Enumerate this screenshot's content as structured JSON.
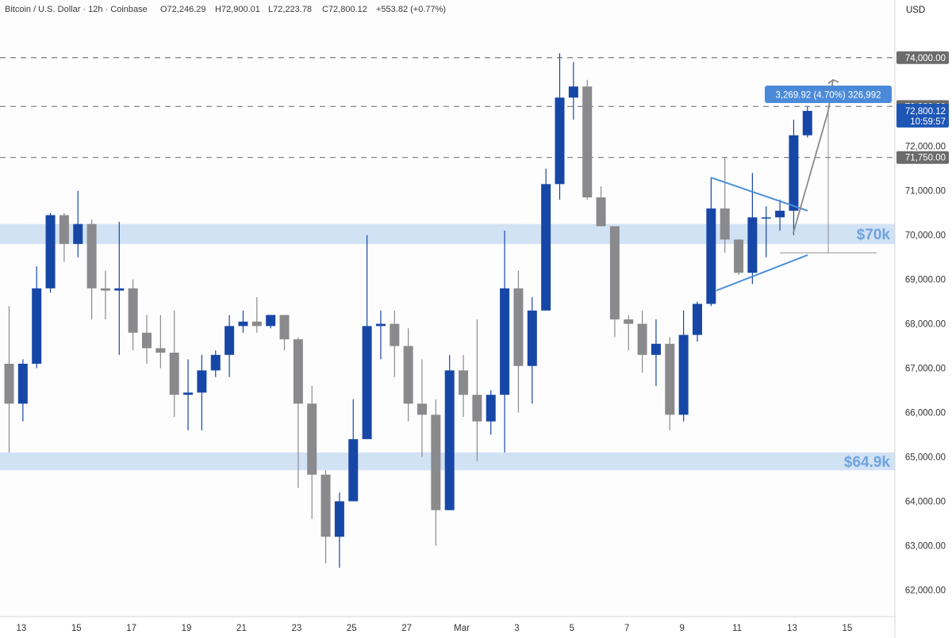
{
  "header": {
    "symbol": "Bitcoin / U.S. Dollar · 12h · Coinbase",
    "open": "O72,246.29",
    "high": "H72,900.01",
    "low": "L72,223.78",
    "close": "C72,800.12",
    "change": "+553.82 (+0.77%)"
  },
  "currency": "USD",
  "colors": {
    "up": "#1747a6",
    "down": "#8a8a8d",
    "zone": "#c9ddf3",
    "zone_label": "#6fa3dc",
    "pattern": "#4a90d9",
    "measure_tag": "#4a8ad8",
    "price_tag": "#1d56b5",
    "level_tag": "#6b6b6b"
  },
  "chart_data": {
    "type": "candlestick",
    "ylim": [
      61400,
      75300
    ],
    "x_ticks": [
      "13",
      "15",
      "17",
      "19",
      "21",
      "23",
      "25",
      "27",
      "Mar",
      "3",
      "5",
      "7",
      "9",
      "11",
      "13",
      "15"
    ],
    "y_ticks": [
      "62,000.00",
      "63,000.00",
      "64,000.00",
      "65,000.00",
      "66,000.00",
      "67,000.00",
      "68,000.00",
      "69,000.00",
      "70,000.00",
      "71,000.00",
      "72,000.00"
    ],
    "candles": [
      {
        "o": 67100,
        "h": 68400,
        "l": 65100,
        "c": 66200
      },
      {
        "o": 66200,
        "h": 67200,
        "l": 65800,
        "c": 67100
      },
      {
        "o": 67100,
        "h": 69300,
        "l": 67000,
        "c": 68800
      },
      {
        "o": 68800,
        "h": 70500,
        "l": 68700,
        "c": 70450
      },
      {
        "o": 70450,
        "h": 70500,
        "l": 69400,
        "c": 69800
      },
      {
        "o": 69800,
        "h": 71000,
        "l": 69500,
        "c": 70250
      },
      {
        "o": 70250,
        "h": 70350,
        "l": 68100,
        "c": 68800
      },
      {
        "o": 68800,
        "h": 69200,
        "l": 68100,
        "c": 68750
      },
      {
        "o": 68750,
        "h": 70300,
        "l": 67300,
        "c": 68800
      },
      {
        "o": 68800,
        "h": 69000,
        "l": 67400,
        "c": 67800
      },
      {
        "o": 67800,
        "h": 68200,
        "l": 67100,
        "c": 67450
      },
      {
        "o": 67450,
        "h": 68200,
        "l": 67000,
        "c": 67350
      },
      {
        "o": 67350,
        "h": 68300,
        "l": 65900,
        "c": 66400
      },
      {
        "o": 66400,
        "h": 67200,
        "l": 65600,
        "c": 66450
      },
      {
        "o": 66450,
        "h": 67300,
        "l": 65600,
        "c": 66950
      },
      {
        "o": 66950,
        "h": 67400,
        "l": 66800,
        "c": 67300
      },
      {
        "o": 67300,
        "h": 68200,
        "l": 66800,
        "c": 67950
      },
      {
        "o": 67950,
        "h": 68300,
        "l": 67800,
        "c": 68050
      },
      {
        "o": 68050,
        "h": 68600,
        "l": 67800,
        "c": 67950
      },
      {
        "o": 67950,
        "h": 68200,
        "l": 67900,
        "c": 68200
      },
      {
        "o": 68200,
        "h": 68200,
        "l": 67400,
        "c": 67650
      },
      {
        "o": 67650,
        "h": 67700,
        "l": 64300,
        "c": 66200
      },
      {
        "o": 66200,
        "h": 66600,
        "l": 63600,
        "c": 64600
      },
      {
        "o": 64600,
        "h": 64700,
        "l": 62600,
        "c": 63200
      },
      {
        "o": 63200,
        "h": 64200,
        "l": 62500,
        "c": 64000
      },
      {
        "o": 64000,
        "h": 66300,
        "l": 64000,
        "c": 65400
      },
      {
        "o": 65400,
        "h": 70000,
        "l": 65400,
        "c": 67950
      },
      {
        "o": 67950,
        "h": 68300,
        "l": 67200,
        "c": 68000
      },
      {
        "o": 68000,
        "h": 68300,
        "l": 66800,
        "c": 67500
      },
      {
        "o": 67500,
        "h": 67900,
        "l": 65800,
        "c": 66200
      },
      {
        "o": 66200,
        "h": 67200,
        "l": 65000,
        "c": 65950
      },
      {
        "o": 65950,
        "h": 66300,
        "l": 63000,
        "c": 63800
      },
      {
        "o": 63800,
        "h": 67300,
        "l": 63800,
        "c": 66950
      },
      {
        "o": 66950,
        "h": 67300,
        "l": 65900,
        "c": 66400
      },
      {
        "o": 66400,
        "h": 68100,
        "l": 64900,
        "c": 65800
      },
      {
        "o": 65800,
        "h": 66500,
        "l": 65500,
        "c": 66400
      },
      {
        "o": 66400,
        "h": 70100,
        "l": 65100,
        "c": 68800
      },
      {
        "o": 68800,
        "h": 69200,
        "l": 66000,
        "c": 67050
      },
      {
        "o": 67050,
        "h": 68600,
        "l": 66200,
        "c": 68300
      },
      {
        "o": 68300,
        "h": 71500,
        "l": 68300,
        "c": 71150
      },
      {
        "o": 71150,
        "h": 74100,
        "l": 70800,
        "c": 73100
      },
      {
        "o": 73100,
        "h": 73900,
        "l": 72600,
        "c": 73350
      },
      {
        "o": 73350,
        "h": 73500,
        "l": 70800,
        "c": 70850
      },
      {
        "o": 70850,
        "h": 71100,
        "l": 70200,
        "c": 70200
      },
      {
        "o": 70200,
        "h": 70200,
        "l": 67700,
        "c": 68100
      },
      {
        "o": 68100,
        "h": 68200,
        "l": 67400,
        "c": 68000
      },
      {
        "o": 68000,
        "h": 68300,
        "l": 66900,
        "c": 67300
      },
      {
        "o": 67300,
        "h": 68100,
        "l": 66600,
        "c": 67550
      },
      {
        "o": 67550,
        "h": 67700,
        "l": 65600,
        "c": 65950
      },
      {
        "o": 65950,
        "h": 68300,
        "l": 65800,
        "c": 67750
      },
      {
        "o": 67750,
        "h": 68500,
        "l": 67600,
        "c": 68450
      },
      {
        "o": 68450,
        "h": 71300,
        "l": 68400,
        "c": 70600
      },
      {
        "o": 70600,
        "h": 71750,
        "l": 69600,
        "c": 69900
      },
      {
        "o": 69900,
        "h": 69900,
        "l": 69100,
        "c": 69150
      },
      {
        "o": 69150,
        "h": 71400,
        "l": 68900,
        "c": 70400
      },
      {
        "o": 70400,
        "h": 70650,
        "l": 69500,
        "c": 70400
      },
      {
        "o": 70400,
        "h": 70800,
        "l": 70100,
        "c": 70550
      },
      {
        "o": 70550,
        "h": 72600,
        "l": 70000,
        "c": 72250
      },
      {
        "o": 72250,
        "h": 72900,
        "l": 72200,
        "c": 72800
      }
    ],
    "levels": [
      74000,
      72900,
      71750
    ],
    "zones": [
      {
        "from": 69800,
        "to": 70250,
        "label": "$70k"
      },
      {
        "from": 64700,
        "to": 65100,
        "label": "$64.9k"
      }
    ],
    "price_labels": [
      "74,000.00",
      "72,900.00",
      "71,750.00"
    ],
    "last_price": {
      "value": "72,800.12",
      "countdown": "10:59:57"
    },
    "measure": {
      "text": "3,269.92 (4.70%) 326,992",
      "from": 69600,
      "to": 72870
    }
  }
}
